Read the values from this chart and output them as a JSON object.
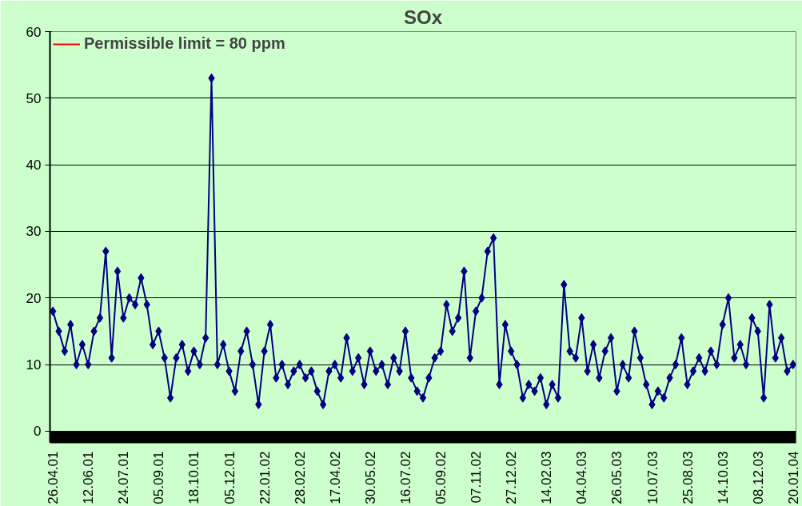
{
  "chart_data": {
    "type": "line",
    "title": "SOx",
    "categories": [
      "26.04.01",
      null,
      null,
      null,
      null,
      null,
      "12.06.01",
      null,
      null,
      null,
      null,
      null,
      "24.07.01",
      null,
      null,
      null,
      null,
      null,
      "05.09.01",
      null,
      null,
      null,
      null,
      null,
      "18.10.01",
      null,
      null,
      null,
      null,
      null,
      "05.12.01",
      null,
      null,
      null,
      null,
      null,
      "22.01.02",
      null,
      null,
      null,
      null,
      null,
      "28.02.02",
      null,
      null,
      null,
      null,
      null,
      "17.04.02",
      null,
      null,
      null,
      null,
      null,
      "30.05.02",
      null,
      null,
      null,
      null,
      null,
      "16.07.02",
      null,
      null,
      null,
      null,
      null,
      "05.09.02",
      null,
      null,
      null,
      null,
      null,
      "07.11.02",
      null,
      null,
      null,
      null,
      null,
      "27.12.02",
      null,
      null,
      null,
      null,
      null,
      "14.02.03",
      null,
      null,
      null,
      null,
      null,
      "04.04.03",
      null,
      null,
      null,
      null,
      null,
      "26.05.03",
      null,
      null,
      null,
      null,
      null,
      "10.07.03",
      null,
      null,
      null,
      null,
      null,
      "25.08.03",
      null,
      null,
      null,
      null,
      null,
      "14.10.03",
      null,
      null,
      null,
      null,
      null,
      "08.12.03",
      null,
      null,
      null,
      null,
      null,
      "20.01.04"
    ],
    "series": [
      {
        "color": "#000080",
        "values": [
          18,
          15,
          12,
          16,
          10,
          13,
          10,
          15,
          17,
          27,
          11,
          24,
          17,
          20,
          19,
          23,
          19,
          13,
          15,
          11,
          5,
          11,
          13,
          9,
          12,
          10,
          14,
          53,
          10,
          13,
          9,
          6,
          12,
          15,
          10,
          4,
          12,
          16,
          8,
          10,
          7,
          9,
          10,
          8,
          9,
          6,
          4,
          9,
          10,
          8,
          14,
          9,
          11,
          7,
          12,
          9,
          10,
          7,
          11,
          9,
          15,
          8,
          6,
          5,
          8,
          11,
          12,
          19,
          15,
          17,
          24,
          11,
          18,
          20,
          27,
          29,
          7,
          16,
          12,
          10,
          5,
          7,
          6,
          8,
          4,
          7,
          5,
          22,
          12,
          11,
          17,
          9,
          13,
          8,
          12,
          14,
          6,
          10,
          8,
          15,
          11,
          7,
          4,
          6,
          5,
          8,
          10,
          14,
          7,
          9,
          11,
          9,
          12,
          10,
          16,
          20,
          11,
          13,
          10,
          17,
          15,
          5,
          19,
          11,
          14,
          9,
          10
        ]
      },
      {
        "name": "Permissible limit = 80 ppm",
        "type": "line",
        "marker": "none",
        "color": "#ff0000",
        "values": [
          null,
          null,
          null,
          null,
          null,
          null,
          null,
          null,
          null,
          null,
          null,
          null,
          null,
          null,
          null,
          null,
          null,
          null,
          null,
          null,
          null,
          null,
          null,
          null,
          null,
          null,
          null,
          null,
          null,
          null,
          null,
          null,
          null,
          null,
          null,
          null,
          null,
          null,
          null,
          null,
          null,
          null,
          null,
          null,
          null,
          null,
          null,
          null,
          null,
          null,
          null,
          null,
          null,
          null,
          null,
          null,
          null,
          null,
          null,
          null,
          null,
          null,
          null,
          null,
          null,
          null,
          null,
          null,
          null,
          null,
          null,
          null,
          null,
          null,
          null,
          null,
          null,
          null,
          null,
          null,
          null,
          null,
          null,
          null,
          null,
          null,
          null,
          null,
          null,
          null,
          null,
          null,
          null,
          null,
          null,
          null,
          null,
          null,
          null,
          null,
          null,
          null,
          null,
          null,
          null,
          null,
          null,
          null,
          null,
          null,
          null,
          null,
          null,
          null,
          null,
          null,
          null,
          null,
          null,
          null,
          null,
          null,
          null,
          null,
          null,
          null,
          null
        ]
      }
    ],
    "ylim": [
      -1.7,
      60
    ],
    "yticks": [
      0,
      10,
      20,
      30,
      40,
      50,
      60
    ],
    "grid": "y",
    "legend": "top left",
    "marker": "diamond",
    "bands": [
      {
        "axis": "y",
        "from": -1.7,
        "to": 0,
        "color": "#000000"
      }
    ]
  }
}
